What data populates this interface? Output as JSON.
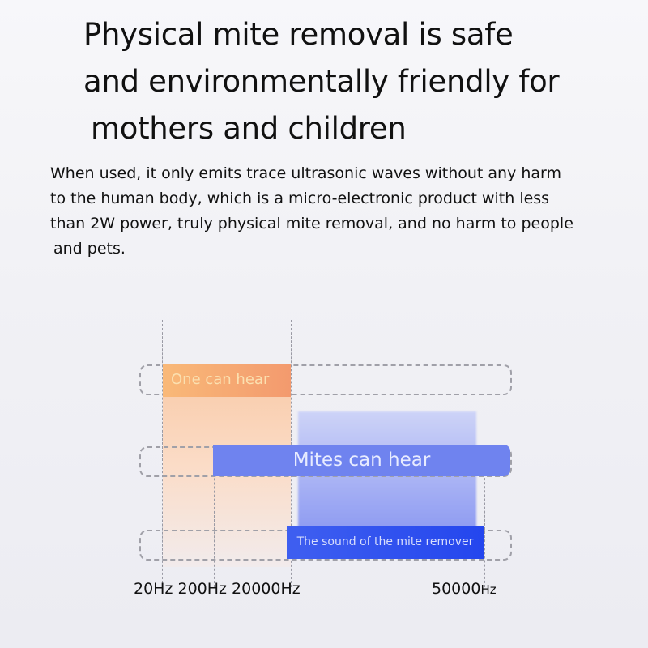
{
  "title_lines": [
    "Physical mite removal is safe",
    "and environmentally friendly for",
    "mothers and children"
  ],
  "description_lines": [
    "When used, it only emits trace ultrasonic waves without any harm",
    "to the human body, which is a micro-electronic product with less",
    "than 2W power, truly physical mite removal, and no harm to people",
    "and pets."
  ],
  "diagram": {
    "labels": {
      "human": "One can hear",
      "mites": "Mites can hear",
      "remover": "The sound of the mite remover"
    },
    "axis": {
      "left": "20Hz 200Hz 20000Hz",
      "right_value": "50000",
      "right_unit": "Hz"
    },
    "colors": {
      "human": "#f5a571",
      "mites": "#6f83ef",
      "remover": "#2f50ef"
    }
  }
}
